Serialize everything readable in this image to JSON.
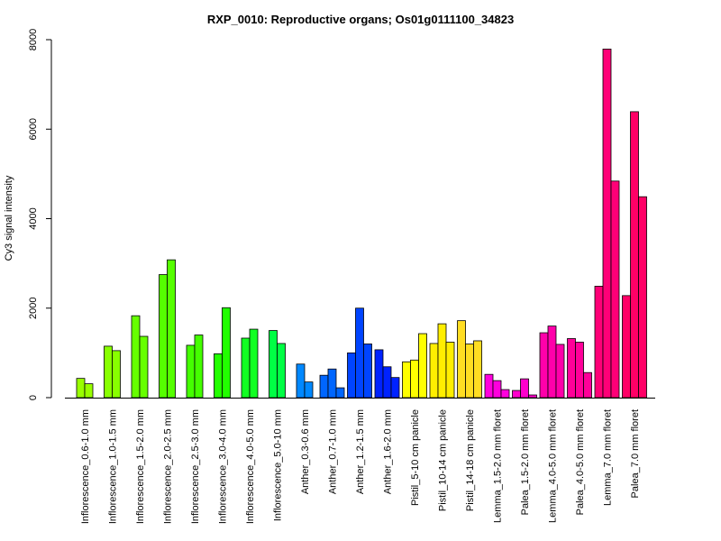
{
  "chart_data": {
    "type": "bar",
    "title": "RXP_0010: Reproductive organs; Os01g0111100_34823",
    "xlabel": "",
    "ylabel": "Cy3 signal intensity",
    "ylim": [
      0,
      8000
    ],
    "yticks": [
      0,
      2000,
      4000,
      6000,
      8000
    ],
    "grid": false,
    "groups": [
      {
        "label": "Inflorescence_0.6-1.0 mm",
        "color": "#99ff00",
        "values": [
          430,
          310
        ]
      },
      {
        "label": "Inflorescence_1.0-1.5 mm",
        "color": "#88ff00",
        "values": [
          1150,
          1050
        ]
      },
      {
        "label": "Inflorescence_1.5-2.0 mm",
        "color": "#66ff00",
        "values": [
          1830,
          1370
        ]
      },
      {
        "label": "Inflorescence_2.0-2.5 mm",
        "color": "#55ff00",
        "values": [
          2750,
          3080
        ]
      },
      {
        "label": "Inflorescence_2.5-3.0 mm",
        "color": "#44ff00",
        "values": [
          1170,
          1400
        ]
      },
      {
        "label": "Inflorescence_3.0-4.0 mm",
        "color": "#22ff00",
        "values": [
          980,
          2010
        ]
      },
      {
        "label": "Inflorescence_4.0-5.0 mm",
        "color": "#11ff22",
        "values": [
          1330,
          1530
        ]
      },
      {
        "label": "Inflorescence_5.0-10 mm",
        "color": "#00ff44",
        "values": [
          1500,
          1210
        ]
      },
      {
        "label": "Anther_0.3-0.6 mm",
        "color": "#0088ff",
        "values": [
          750,
          350
        ]
      },
      {
        "label": "Anther_0.7-1.0 mm",
        "color": "#0066ff",
        "values": [
          500,
          640,
          220
        ]
      },
      {
        "label": "Anther_1.2-1.5 mm",
        "color": "#0044ff",
        "values": [
          1000,
          2000,
          1200
        ]
      },
      {
        "label": "Anther_1.6-2.0 mm",
        "color": "#0022ff",
        "values": [
          1070,
          690,
          450
        ]
      },
      {
        "label": "Pistil_5-10 cm panicle",
        "color": "#ffff00",
        "values": [
          800,
          840,
          1430
        ]
      },
      {
        "label": "Pistil_10-14 cm panicle",
        "color": "#ffee00",
        "values": [
          1210,
          1650,
          1240
        ]
      },
      {
        "label": "Pistil_14-18 cm panicle",
        "color": "#ffdd22",
        "values": [
          1720,
          1200,
          1270
        ]
      },
      {
        "label": "Lemma_1.5-2.0 mm floret",
        "color": "#ff00dd",
        "values": [
          520,
          380,
          180
        ]
      },
      {
        "label": "Palea_1.5-2.0 mm floret",
        "color": "#ff00cc",
        "values": [
          160,
          420,
          60
        ]
      },
      {
        "label": "Lemma_4.0-5.0 mm floret",
        "color": "#ff00aa",
        "values": [
          1450,
          1600,
          1190
        ]
      },
      {
        "label": "Palea_4.0-5.0 mm floret",
        "color": "#ff0099",
        "values": [
          1320,
          1240,
          560
        ]
      },
      {
        "label": "Lemma_7.0 mm floret",
        "color": "#ff0077",
        "values": [
          2490,
          7790,
          4840
        ]
      },
      {
        "label": "Palea_7.0 mm floret",
        "color": "#ff0066",
        "values": [
          2280,
          6390,
          4490
        ]
      }
    ]
  }
}
